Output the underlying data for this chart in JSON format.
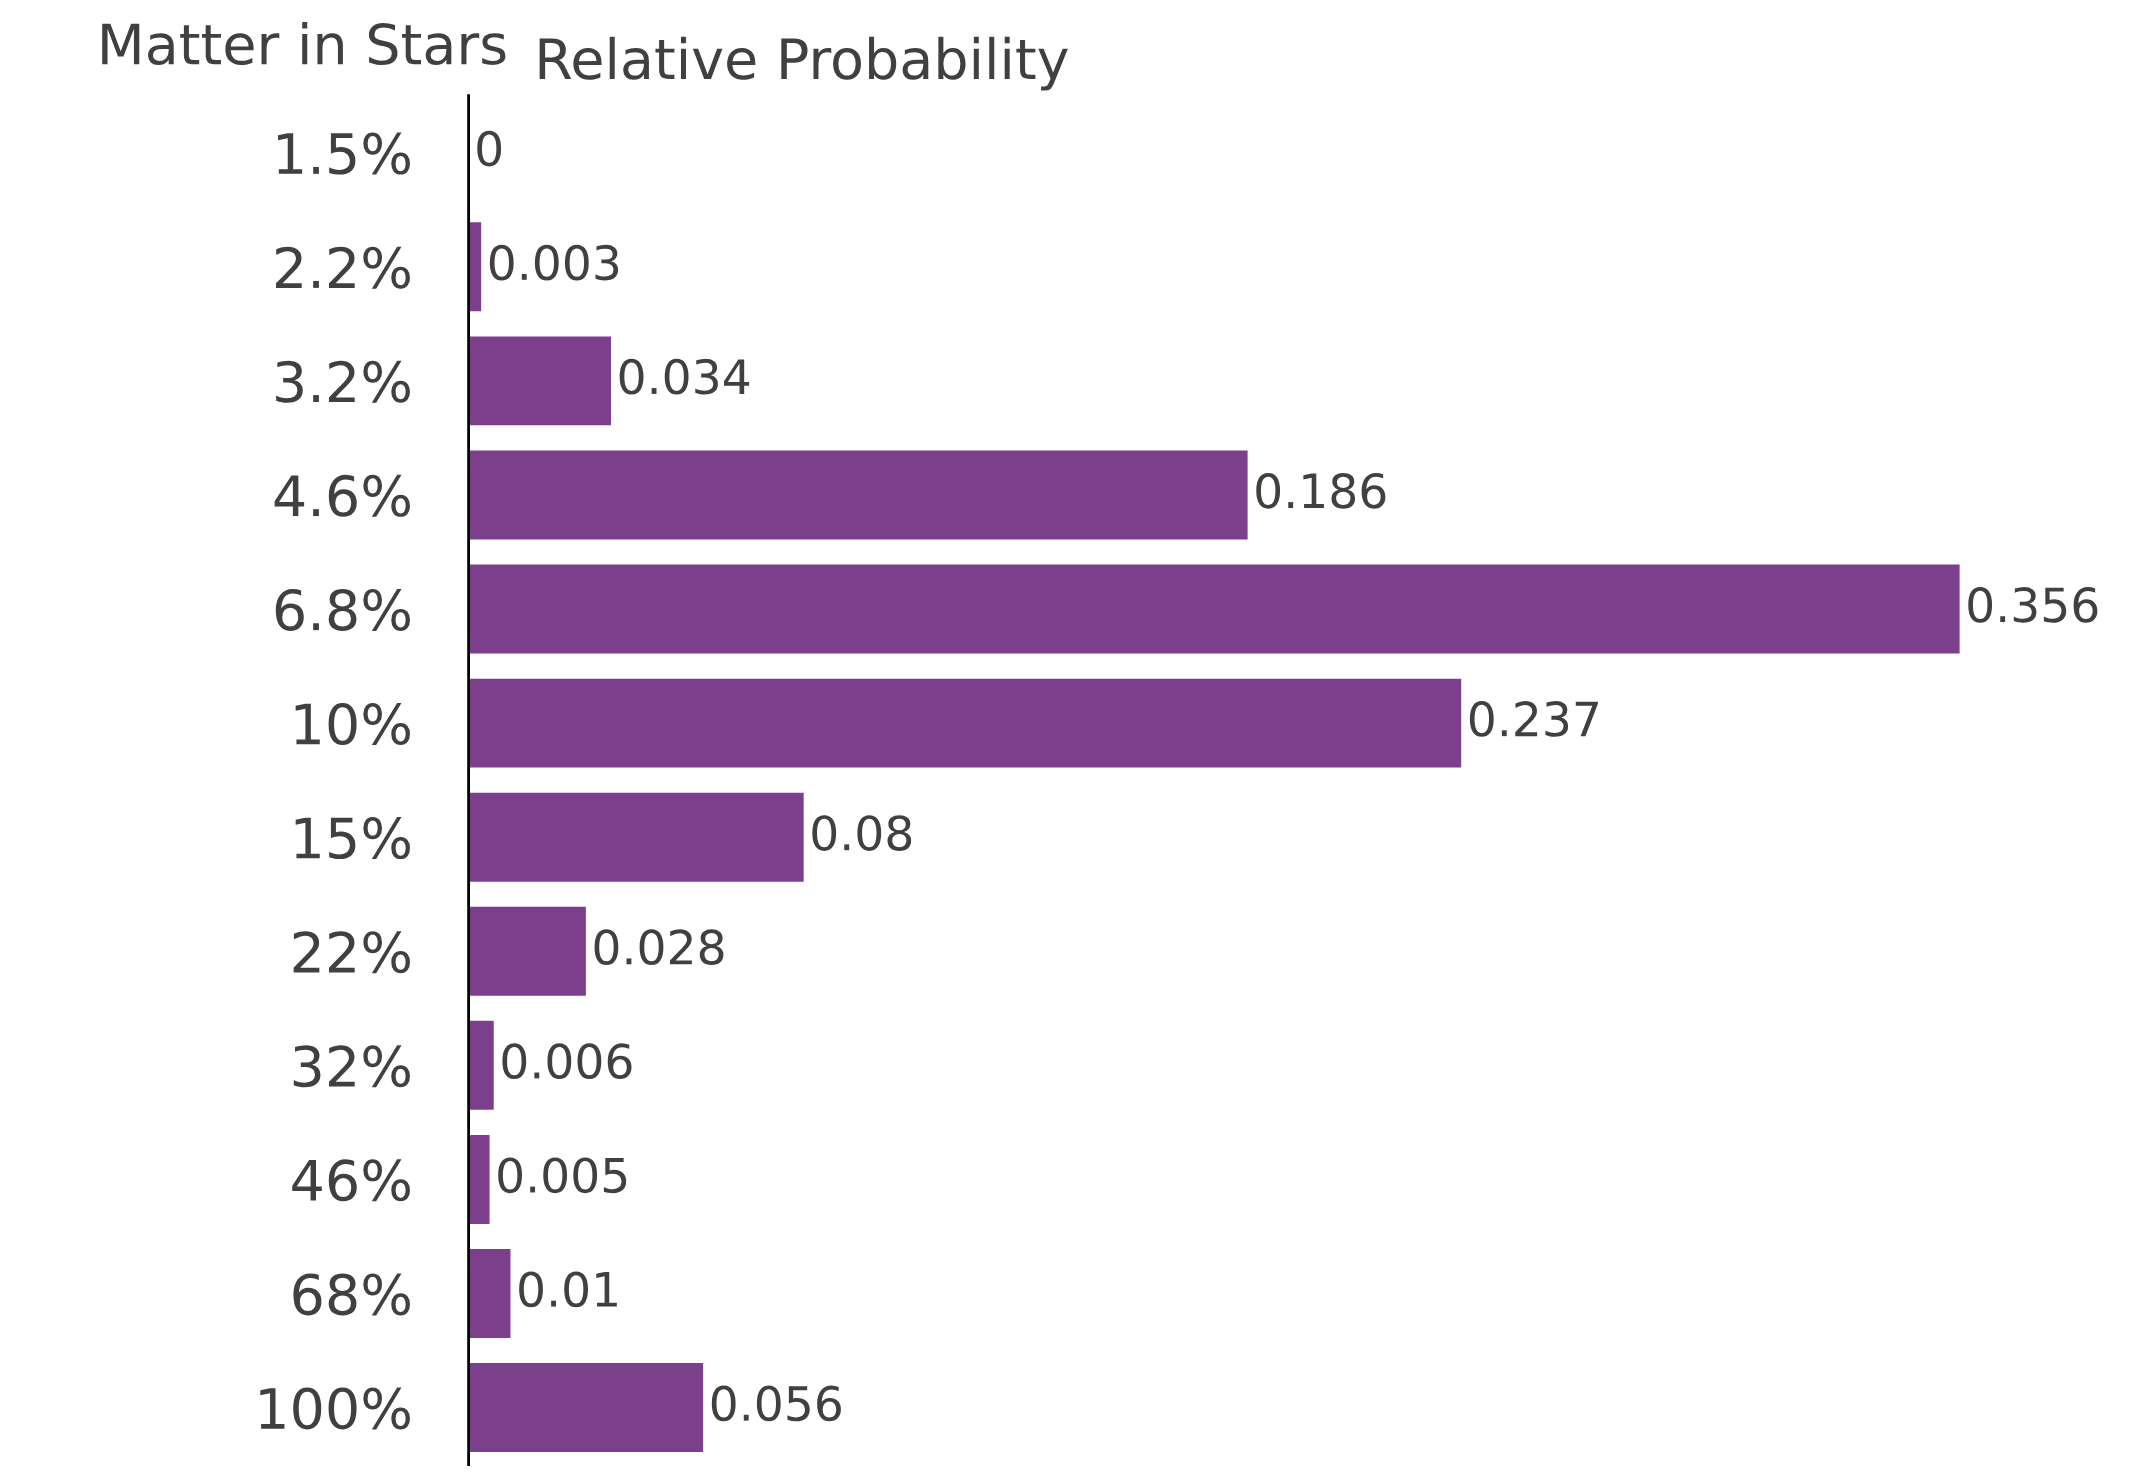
{
  "chart_data": {
    "type": "bar",
    "orientation": "horizontal",
    "xlabel": "Relative Probability",
    "ylabel": "Matter in Stars",
    "categories": [
      "1.5%",
      "2.2%",
      "3.2%",
      "4.6%",
      "6.8%",
      "10%",
      "15%",
      "22%",
      "32%",
      "46%",
      "68%",
      "100%"
    ],
    "values": [
      0,
      0.003,
      0.034,
      0.186,
      0.356,
      0.237,
      0.08,
      0.028,
      0.006,
      0.005,
      0.01,
      0.056
    ],
    "color": "#7b3f8c",
    "data_labels": true,
    "tick_labels": "y",
    "grid": false
  }
}
